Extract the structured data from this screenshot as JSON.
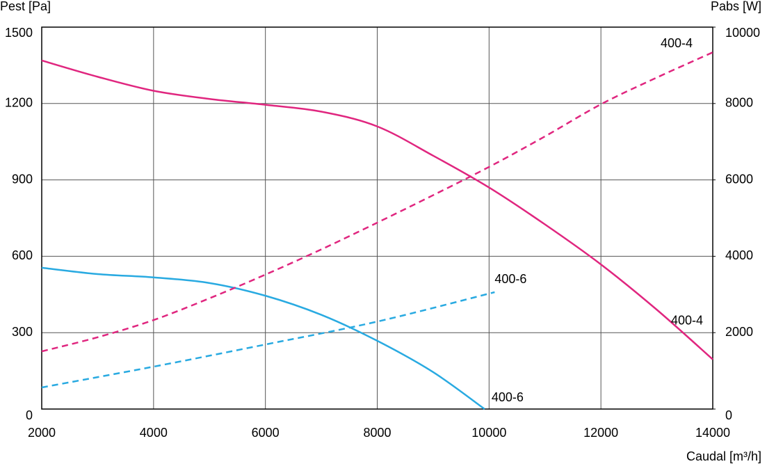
{
  "chart_data": {
    "type": "line",
    "y_label": "Pest [Pa]",
    "y2_label": "Pabs [W]",
    "x_label": "Caudal [m³/h]",
    "xlim": [
      2000,
      14000
    ],
    "xticks": [
      2000,
      4000,
      6000,
      8000,
      10000,
      12000,
      14000
    ],
    "ylim": [
      0,
      1500
    ],
    "yticks": [
      0,
      300,
      600,
      900,
      1200,
      1500
    ],
    "y2lim": [
      0,
      10000
    ],
    "y2ticks": [
      0,
      2000,
      4000,
      6000,
      8000,
      10000
    ],
    "grid": true,
    "series": [
      {
        "name": "400-4",
        "color": "#e0267f",
        "style": "solid",
        "x": [
          2000,
          3000,
          4000,
          5000,
          6000,
          7000,
          8000,
          9000,
          10000,
          11000,
          12000,
          13000,
          14000
        ],
        "values": [
          1369,
          1305,
          1250,
          1218,
          1195,
          1168,
          1110,
          995,
          870,
          725,
          568,
          390,
          195
        ]
      },
      {
        "name": "400-6",
        "color": "#29aae1",
        "style": "solid",
        "x": [
          2000,
          3000,
          4000,
          5000,
          6000,
          7000,
          8000,
          9000,
          9920
        ],
        "values": [
          555,
          530,
          517,
          495,
          445,
          370,
          268,
          145,
          0
        ]
      },
      {
        "name": "400-4",
        "color": "#e0267f",
        "style": "dashed",
        "axis": "y2",
        "x": [
          2000,
          3000,
          4000,
          5000,
          6000,
          7000,
          8000,
          9000,
          10000,
          11000,
          12000,
          13000,
          14000
        ],
        "values": [
          1510,
          1880,
          2330,
          2900,
          3520,
          4180,
          4880,
          5600,
          6340,
          7140,
          7980,
          8680,
          9340
        ]
      },
      {
        "name": "400-6",
        "color": "#29aae1",
        "style": "dashed",
        "axis": "y2",
        "x": [
          2000,
          4000,
          6000,
          8000,
          10100
        ],
        "values": [
          565,
          1110,
          1690,
          2290,
          3060
        ]
      }
    ]
  }
}
